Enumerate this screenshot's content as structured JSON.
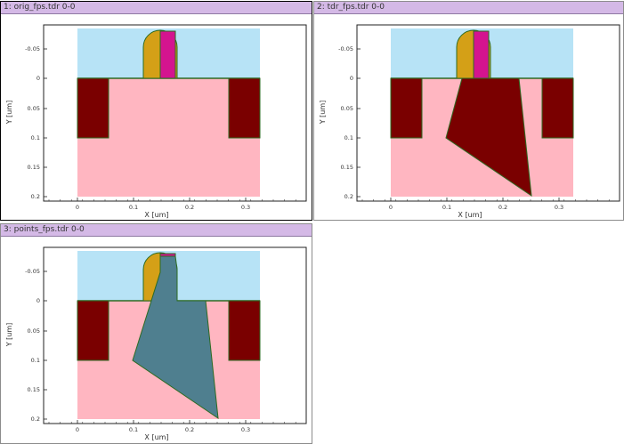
{
  "panels": [
    {
      "title": "1: orig_fps.tdr 0-0"
    },
    {
      "title": "2: tdr_fps.tdr 0-0"
    },
    {
      "title": "3: points_fps.tdr 0-0"
    }
  ],
  "axes": {
    "xlabel": "X [um]",
    "ylabel": "Y [um]",
    "x_ticks": [
      "0",
      "0.1",
      "0.2",
      "0.3"
    ],
    "y_ticks": [
      "-0.05",
      "0",
      "0.05",
      "0.1",
      "0.15",
      "0.2"
    ]
  },
  "colors": {
    "oxide": "#b7e3f6",
    "silicon": "#ffb6c1",
    "isolation": "#7a0000",
    "spacer": "#d4a017",
    "gate": "#d4148f",
    "outline": "#2d6b22",
    "inserted_region_tdr": "#7a0000",
    "inserted_region_points": "#4f7f8f"
  }
}
